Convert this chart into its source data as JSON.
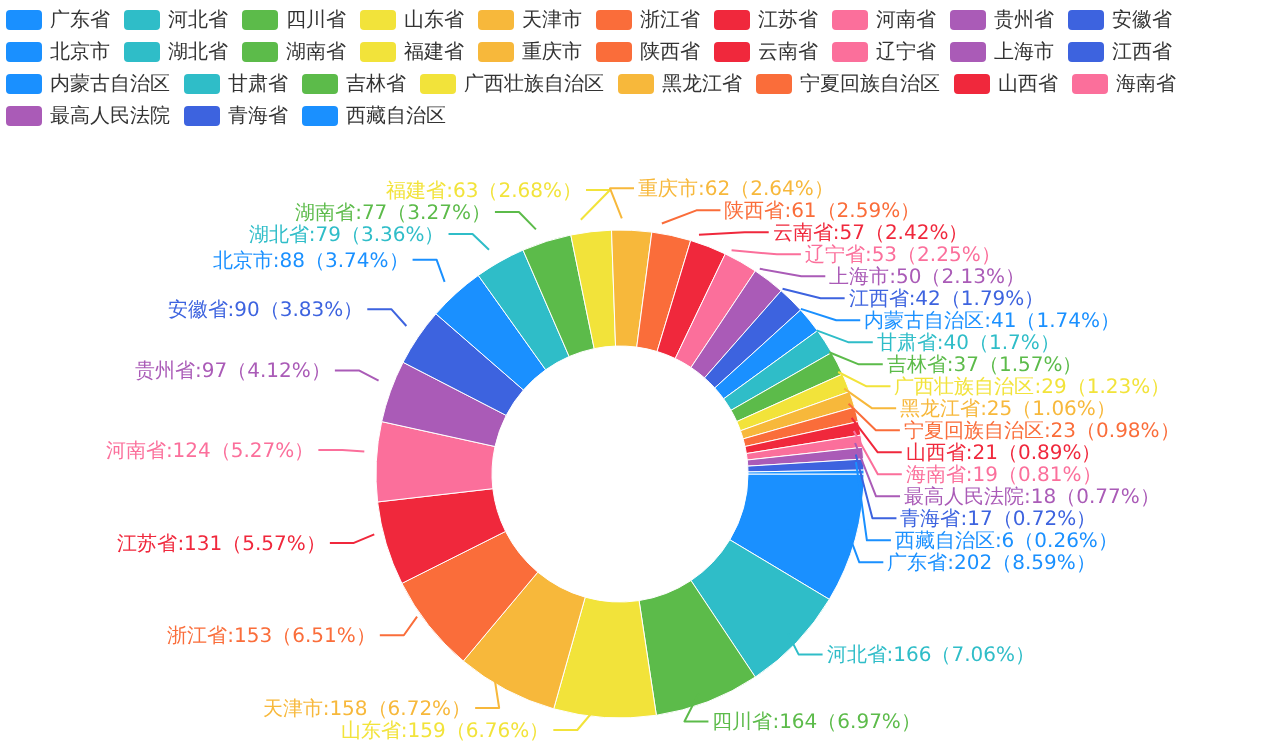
{
  "chart_data": {
    "type": "donut",
    "legend": "top",
    "categories": [
      "广东省",
      "河北省",
      "四川省",
      "山东省",
      "天津市",
      "浙江省",
      "江苏省",
      "河南省",
      "贵州省",
      "安徽省",
      "北京市",
      "湖北省",
      "湖南省",
      "福建省",
      "重庆市",
      "陕西省",
      "云南省",
      "辽宁省",
      "上海市",
      "江西省",
      "内蒙古自治区",
      "甘肃省",
      "吉林省",
      "广西壮族自治区",
      "黑龙江省",
      "宁夏回族自治区",
      "山西省",
      "海南省",
      "最高人民法院",
      "青海省",
      "西藏自治区"
    ],
    "values": [
      202,
      166,
      164,
      159,
      158,
      153,
      131,
      124,
      97,
      90,
      88,
      79,
      77,
      63,
      62,
      61,
      57,
      53,
      50,
      42,
      41,
      40,
      37,
      29,
      25,
      23,
      21,
      19,
      18,
      17,
      6
    ],
    "value_labels": [
      "广东省:202（8.59%）",
      "河北省:166（7.06%）",
      "四川省:164（6.97%）",
      "山东省:159（6.76%）",
      "天津市:158（6.72%）",
      "浙江省:153（6.51%）",
      "江苏省:131（5.57%）",
      "河南省:124（5.27%）",
      "贵州省:97（4.12%）",
      "安徽省:90（3.83%）",
      "北京市:88（3.74%）",
      "湖北省:79（3.36%）",
      "湖南省:77（3.27%）",
      "福建省:63（2.68%）",
      "重庆市:62（2.64%）",
      "陕西省:61（2.59%）",
      "云南省:57（2.42%）",
      "辽宁省:53（2.25%）",
      "上海市:50（2.13%）",
      "江西省:42（1.79%）",
      "内蒙古自治区:41（1.74%）",
      "甘肃省:40（1.7%）",
      "吉林省:37（1.57%）",
      "广西壮族自治区:29（1.23%）",
      "黑龙江省:25（1.06%）",
      "宁夏回族自治区:23（0.98%）",
      "山西省:21（0.89%）",
      "海南省:19（0.81%）",
      "最高人民法院:18（0.77%）",
      "青海省:17（0.72%）",
      "西藏自治区:6（0.26%）"
    ],
    "colors": [
      "#1a90ff",
      "#2fbdc8",
      "#5cbb4a",
      "#f2e33a",
      "#f7b83b",
      "#fa6d3a",
      "#f0283c",
      "#fb6f9b",
      "#aa5bb7",
      "#3d63df",
      "#1a90ff",
      "#2fbdc8",
      "#5cbb4a",
      "#f2e33a",
      "#f7b83b",
      "#fa6d3a",
      "#f0283c",
      "#fb6f9b",
      "#aa5bb7",
      "#3d63df",
      "#1a90ff",
      "#2fbdc8",
      "#5cbb4a",
      "#f2e33a",
      "#f7b83b",
      "#fa6d3a",
      "#f0283c",
      "#fb6f9b",
      "#aa5bb7",
      "#3d63df",
      "#1a90ff"
    ]
  }
}
